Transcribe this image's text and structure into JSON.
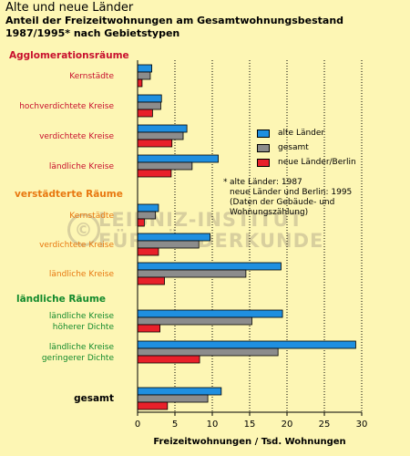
{
  "header": {
    "title": "Alte und neue Länder",
    "subtitle_line1": "Anteil der Freizeitwohnungen am Gesamtwohnungsbestand",
    "subtitle_line2": "1987/1995* nach Gebietstypen"
  },
  "legend": {
    "items": [
      {
        "label": "alte Länder",
        "color": "#1f8fe0"
      },
      {
        "label": "gesamt",
        "color": "#8c8c8c"
      },
      {
        "label": "neue Länder/Berlin",
        "color": "#e8202a"
      }
    ]
  },
  "footnote": {
    "star": "*",
    "line1": "alte Länder: 1987",
    "line2": "neue Länder und Berlin: 1995",
    "line3": "(Daten der Gebäude- und",
    "line4": "Wohnungszählung)"
  },
  "watermark": {
    "symbol": "©",
    "line1": "LEIBNIZ-INSTITUT",
    "line2": "FÜR LÄNDERKUNDE"
  },
  "chart_data": {
    "type": "bar",
    "orientation": "horizontal",
    "xlabel": "Freizeitwohnungen / Tsd. Wohnungen",
    "ylabel": "",
    "xlim": [
      0,
      30
    ],
    "xticks": [
      0,
      5,
      10,
      15,
      20,
      25,
      30
    ],
    "grid": "vertical dotted",
    "legend_position": "right",
    "series_names": [
      "alte Länder",
      "gesamt",
      "neue Länder/Berlin"
    ],
    "series_colors": [
      "#1f8fe0",
      "#8c8c8c",
      "#e8202a"
    ],
    "groups": [
      {
        "label": "Agglomerationsräume",
        "color": "#c8102e",
        "categories": [
          {
            "label": "Kernstädte",
            "values": [
              1.9,
              1.7,
              0.6
            ]
          },
          {
            "label": "hochverdichtete Kreise",
            "values": [
              3.2,
              3.1,
              2.0
            ]
          },
          {
            "label": "verdichtete Kreise",
            "values": [
              6.6,
              6.1,
              4.6
            ]
          },
          {
            "label": "ländliche Kreise",
            "values": [
              10.8,
              7.3,
              4.5
            ]
          }
        ]
      },
      {
        "label": "verstädterte Räume",
        "color": "#e87810",
        "categories": [
          {
            "label": "Kernstädte",
            "values": [
              2.8,
              2.4,
              0.9
            ]
          },
          {
            "label": "verdichtete Kreise",
            "values": [
              9.7,
              8.2,
              2.8
            ]
          },
          {
            "label": "ländliche Kreise",
            "values": [
              19.2,
              14.5,
              3.6
            ]
          }
        ]
      },
      {
        "label": "ländliche Räume",
        "color": "#138a2c",
        "categories": [
          {
            "label": "ländliche Kreise höherer Dichte",
            "label_lines": [
              "ländliche Kreise",
              "höherer Dichte"
            ],
            "values": [
              19.4,
              15.3,
              3.0
            ]
          },
          {
            "label": "ländliche Kreise geringerer Dichte",
            "label_lines": [
              "ländliche Kreise",
              "geringerer Dichte"
            ],
            "values": [
              29.2,
              18.8,
              8.3
            ]
          }
        ]
      },
      {
        "label": "",
        "color": "#000000",
        "categories": [
          {
            "label": "gesamt",
            "values": [
              11.2,
              9.4,
              4.0
            ],
            "bold": true
          }
        ]
      }
    ]
  }
}
